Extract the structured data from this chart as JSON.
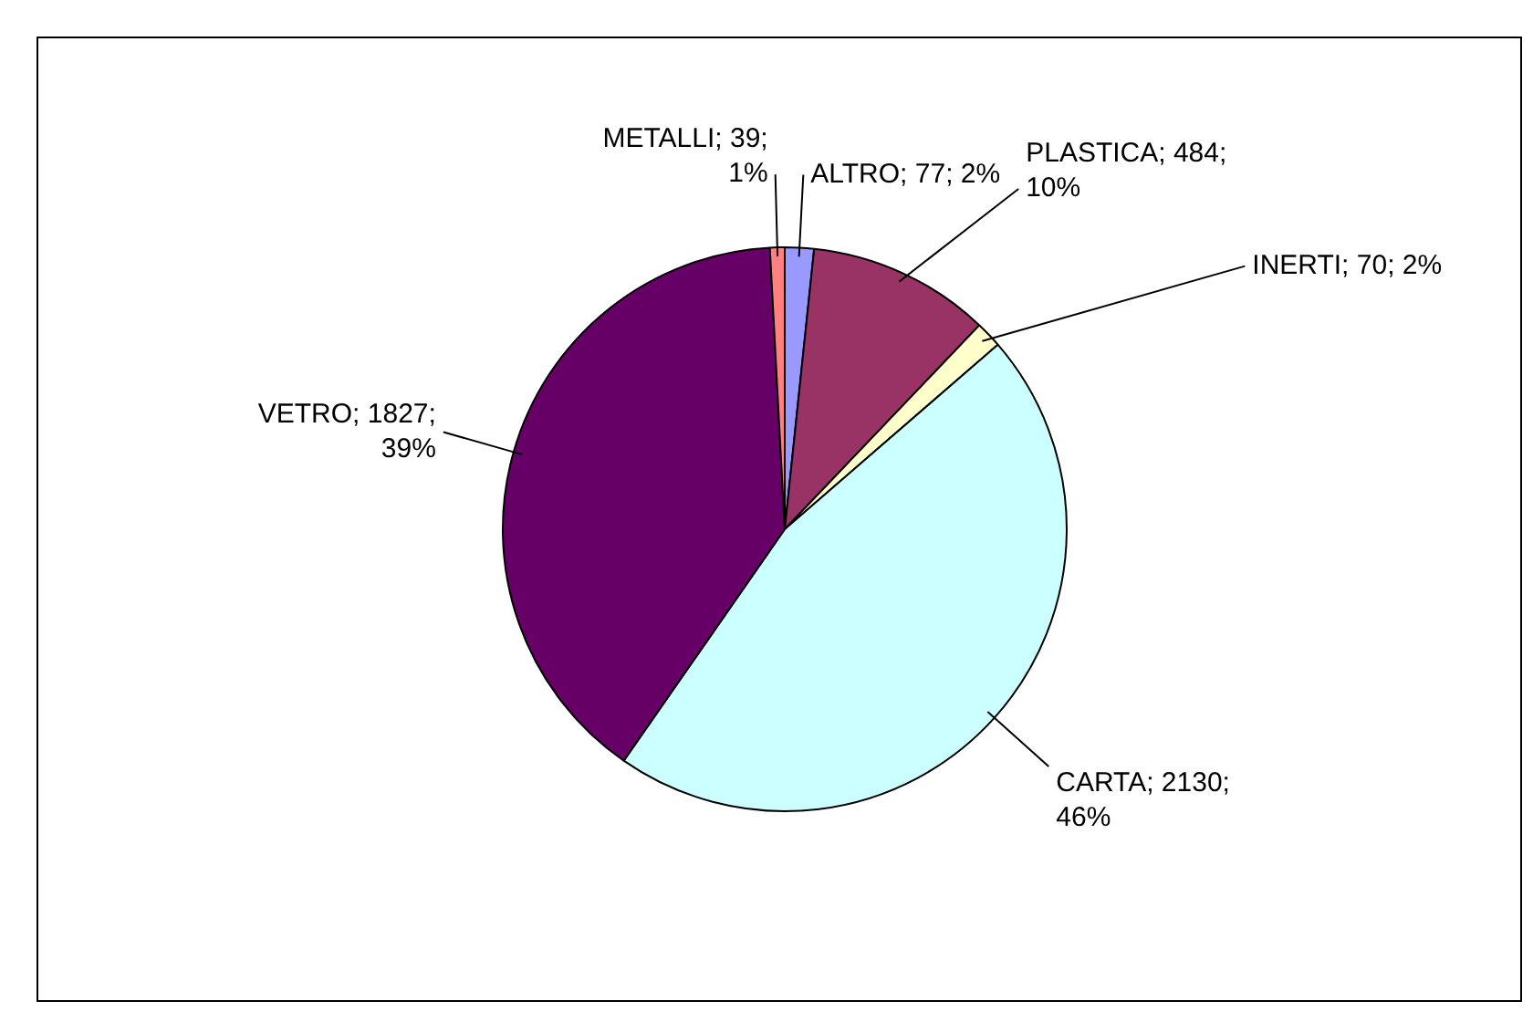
{
  "chart_data": {
    "type": "pie",
    "categories": [
      "ALTRO",
      "PLASTICA",
      "INERTI",
      "CARTA",
      "VETRO",
      "METALLI"
    ],
    "values": [
      77,
      484,
      70,
      2130,
      1827,
      39
    ],
    "colors": [
      "#9999ff",
      "#993366",
      "#ffffcc",
      "#ccffff",
      "#660066",
      "#ff8080"
    ],
    "value_labels": [
      "77; 2%",
      "484; 10%",
      "70; 2%",
      "2130; 46%",
      "1827; 39%",
      "39; 1%"
    ],
    "legend": false
  }
}
